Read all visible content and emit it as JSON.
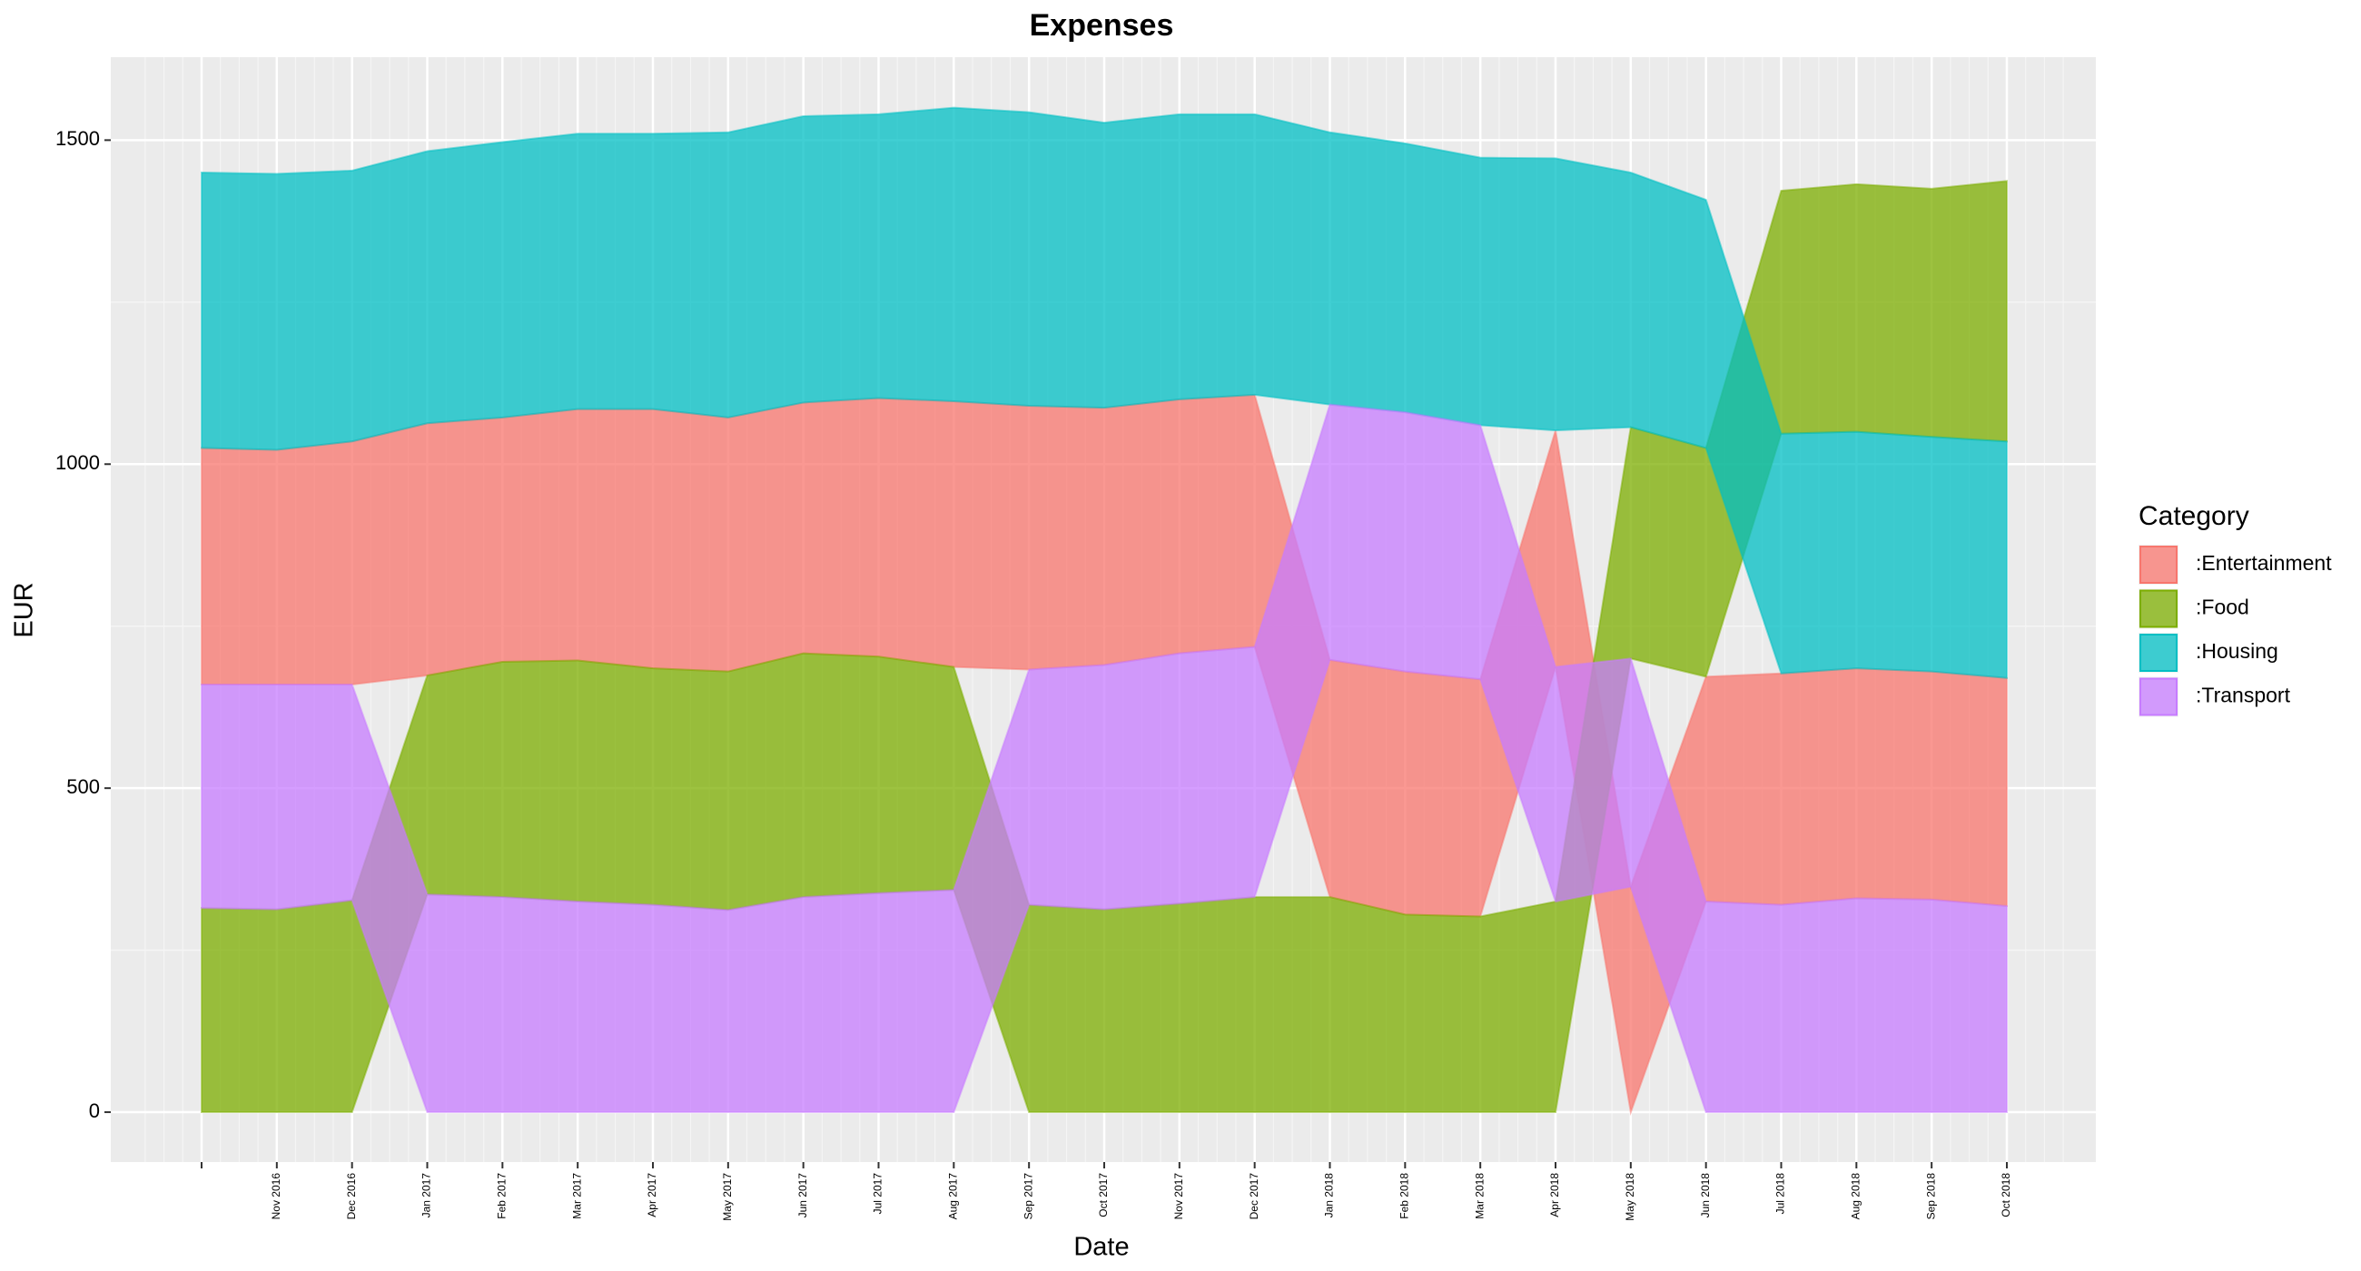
{
  "chart_data": {
    "type": "area",
    "title": "Expenses",
    "x_label": "Date",
    "y_label": "EUR",
    "legend_title": "Category",
    "legend_position": "right",
    "stacked": true,
    "stack_order": "ascending",
    "grid": true,
    "categories": [
      null,
      "Nov 2016",
      "Dec 2016",
      "Jan 2017",
      "Feb 2017",
      "Mar 2017",
      "Apr 2017",
      "May 2017",
      "Jun 2017",
      "Jul 2017",
      "Aug 2017",
      "Sep 2017",
      "Oct 2017",
      "Nov 2017",
      "Dec 2017",
      "Jan 2018",
      "Feb 2018",
      "Mar 2018",
      "Apr 2018",
      "May 2018",
      "Jun 2018",
      "Jul 2018",
      "Aug 2018",
      "Sep 2018",
      "Oct 2018"
    ],
    "series": [
      {
        "name": ":Entertainment",
        "color": "#F8766D",
        "values": [
          365,
          362,
          375,
          389,
          377,
          388,
          400,
          392,
          387,
          399,
          410,
          407,
          397,
          392,
          389,
          366,
          375,
          366,
          365,
          348,
          347,
          357,
          355,
          352,
          352
        ]
      },
      {
        "name": ":Food",
        "color": "#7CAE00",
        "values": [
          315,
          313,
          327,
          338,
          363,
          372,
          365,
          368,
          376,
          365,
          344,
          320,
          313,
          322,
          332,
          332,
          305,
          302,
          325,
          357,
          353,
          375,
          382,
          383,
          402
        ]
      },
      {
        "name": ":Housing",
        "color": "#00BFC4",
        "values": [
          425,
          426,
          418,
          420,
          425,
          425,
          425,
          440,
          442,
          438,
          453,
          453,
          440,
          440,
          433,
          420,
          415,
          413,
          420,
          393,
          383,
          370,
          365,
          362,
          365
        ]
      },
      {
        "name": ":Transport",
        "color": "#C77CFF",
        "values": [
          345,
          347,
          333,
          336,
          332,
          325,
          320,
          312,
          332,
          338,
          343,
          363,
          377,
          386,
          386,
          394,
          400,
          392,
          362,
          352,
          325,
          320,
          330,
          328,
          318
        ]
      }
    ],
    "ylim": [
      -77,
      1628
    ],
    "yticks": [
      0,
      500,
      1000,
      1500
    ]
  }
}
